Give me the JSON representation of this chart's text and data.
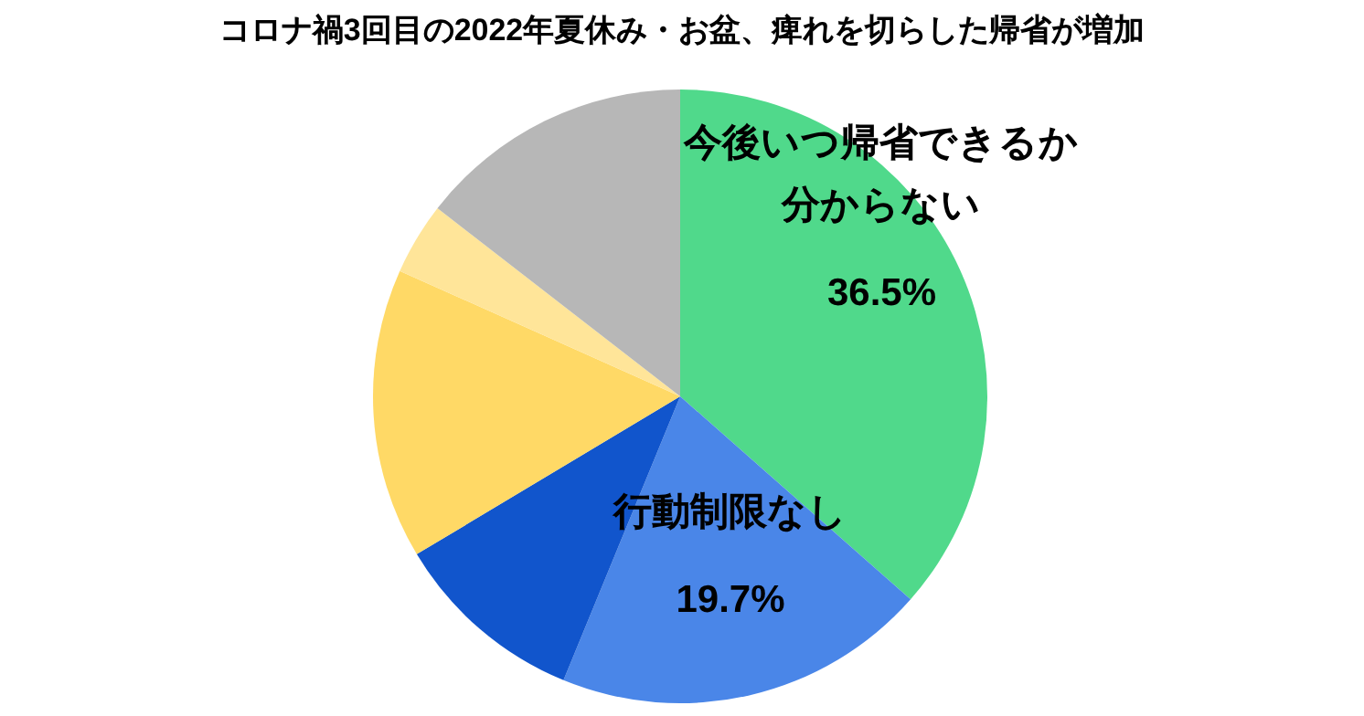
{
  "chart_data": {
    "type": "pie",
    "title": "コロナ禍3回目の2022年夏休み・お盆、痺れを切らした帰省が増加",
    "categories": [
      "今後いつ帰省できるか分からない",
      "行動制限なし",
      null,
      null,
      null,
      null
    ],
    "values": [
      36.5,
      19.7,
      10.2,
      15.3,
      3.8,
      14.5
    ],
    "value_labels": [
      "36.5%",
      "19.7%",
      null,
      null,
      null,
      null
    ],
    "colors": [
      "#50d98b",
      "#4a86e8",
      "#1155cc",
      "#ffd966",
      "#ffe599",
      "#b7b7b7"
    ]
  }
}
